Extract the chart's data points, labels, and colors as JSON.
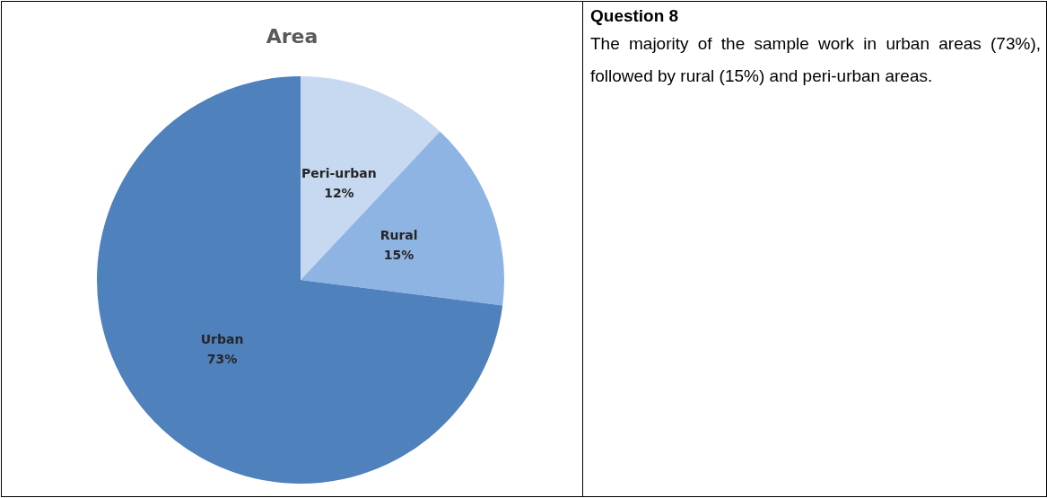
{
  "chart_data": [
    {
      "type": "pie",
      "title": "Area",
      "categories": [
        "Peri-urban",
        "Rural",
        "Urban"
      ],
      "values": [
        12,
        15,
        73
      ],
      "value_labels": [
        "12%",
        "15%",
        "73%"
      ],
      "colors": [
        "#c6d9f1",
        "#8eb4e3",
        "#4f81bd"
      ],
      "legend": false
    },
    {
      "type": "other",
      "title": "Question 8",
      "annotations": [
        "The majority of the sample work in urban areas (73%), followed by rural (15%) and peri-urban areas."
      ]
    }
  ]
}
